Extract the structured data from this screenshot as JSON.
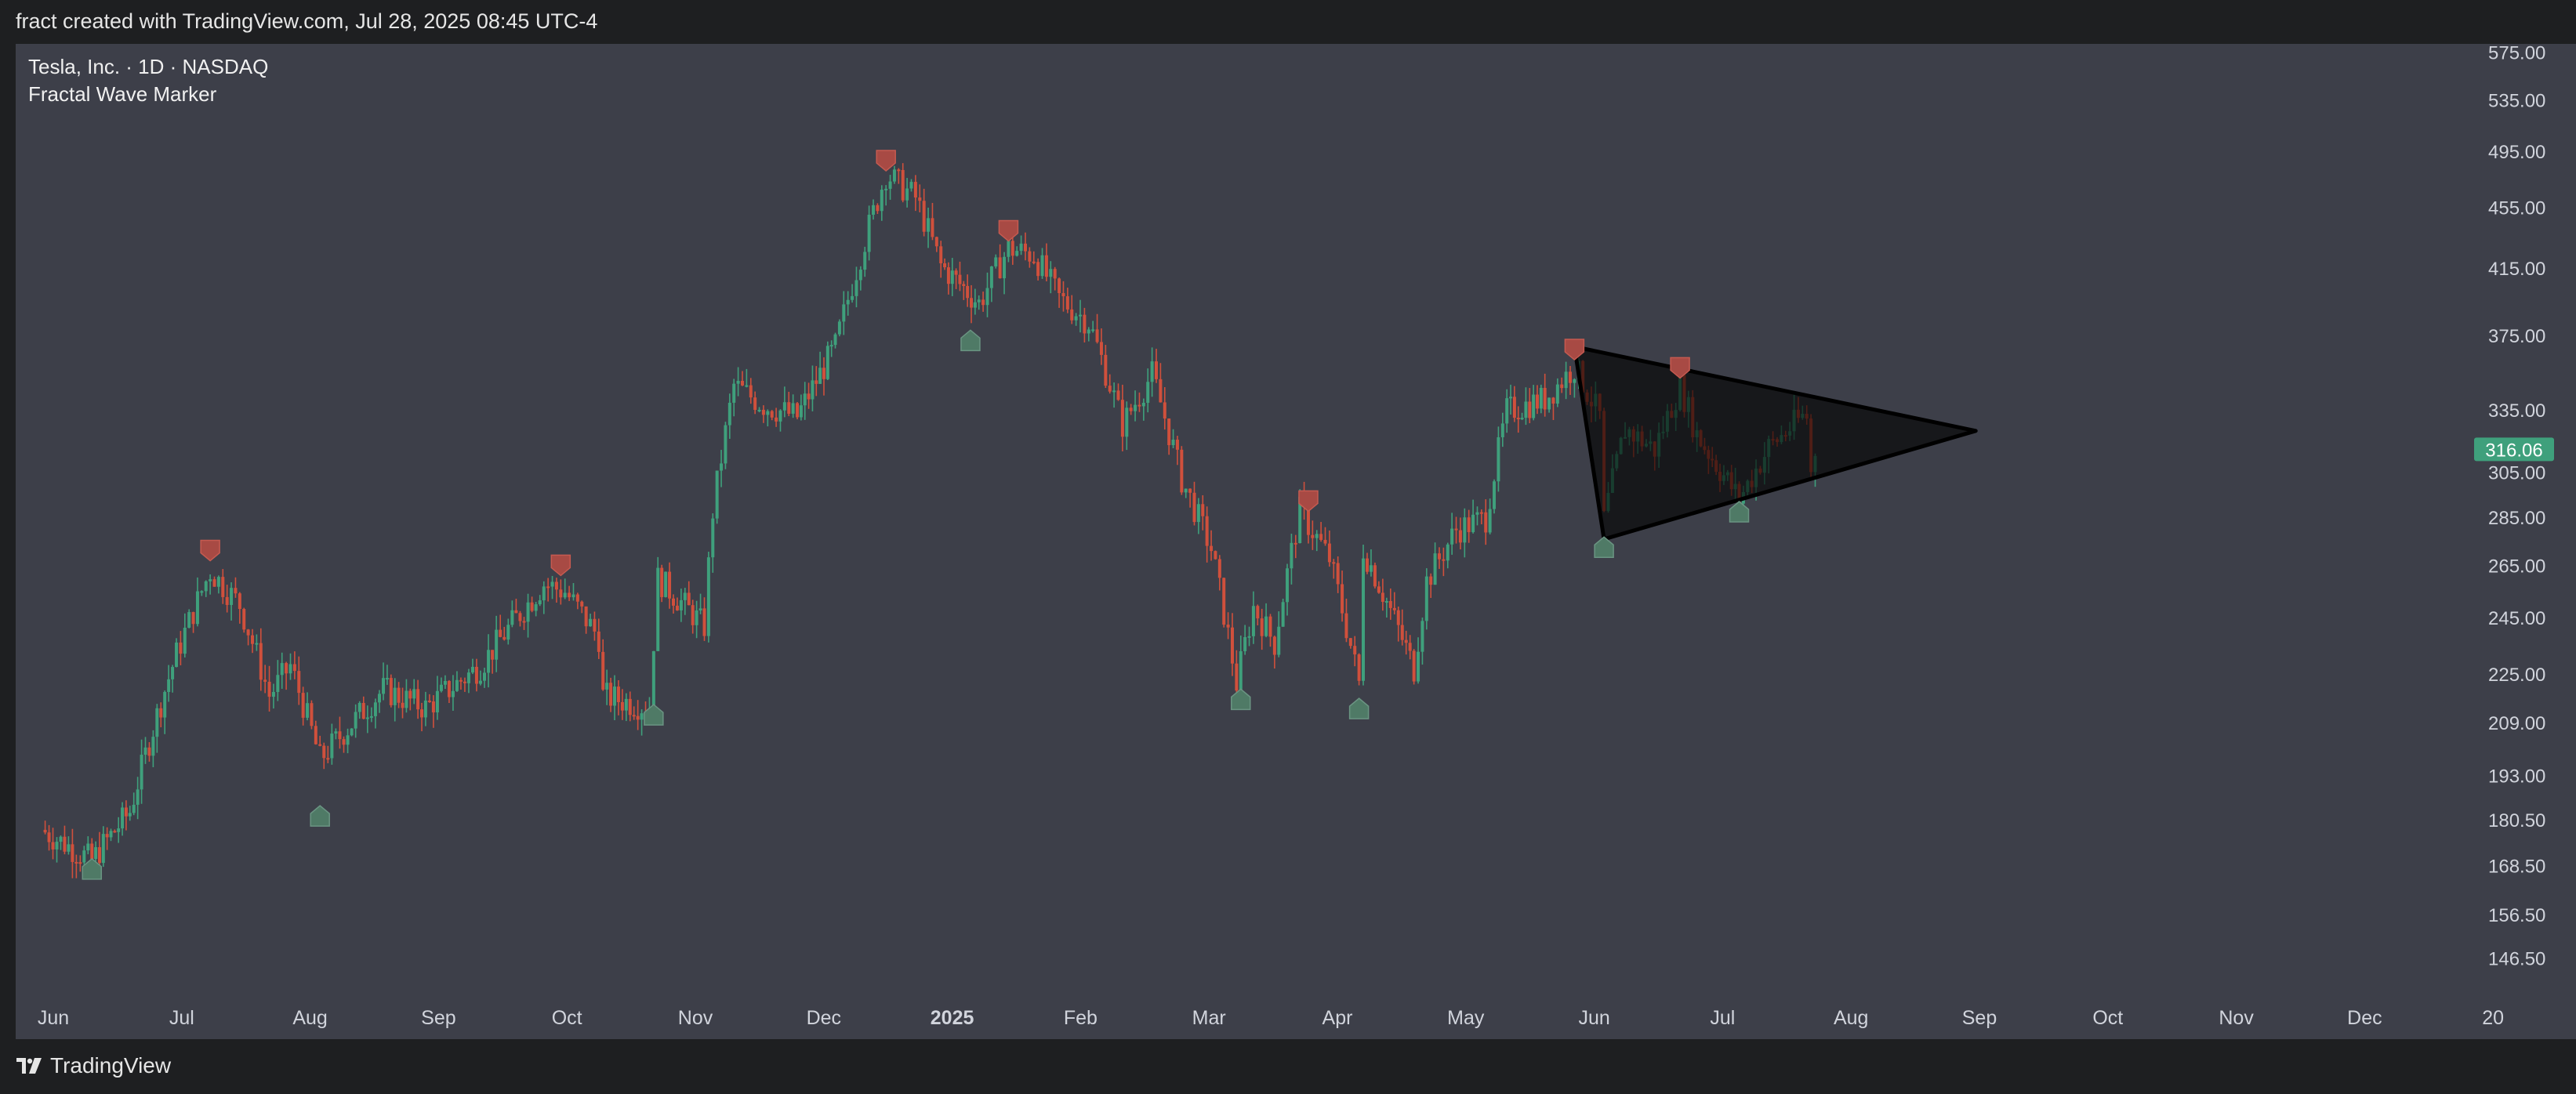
{
  "header": {
    "caption": "fract created with TradingView.com, Jul 28, 2025 08:45 UTC-4"
  },
  "legend": {
    "symbol_line": "Tesla, Inc. · 1D · NASDAQ",
    "indicator": "Fractal Wave Marker"
  },
  "footer": {
    "brand": "TradingView",
    "logo_icon": "tradingview-logo-icon"
  },
  "colors": {
    "up": "#3fa07c",
    "down": "#d0503c",
    "marker_top": "#a84a44",
    "marker_bottom": "#4f7a66",
    "triangle": "#000000",
    "last_price_bg": "#3fa07c"
  },
  "chart_data": {
    "type": "candlestick",
    "symbol": "Tesla, Inc.",
    "interval": "1D",
    "exchange": "NASDAQ",
    "indicator": "Fractal Wave Marker",
    "price_ticks": [
      575.0,
      535.0,
      495.0,
      455.0,
      415.0,
      375.0,
      335.0,
      305.0,
      285.0,
      265.0,
      245.0,
      225.0,
      209.0,
      193.0,
      180.5,
      168.5,
      156.5,
      146.5
    ],
    "last_price": "316.06",
    "ylim": [
      140,
      580
    ],
    "scale": "log",
    "time_ticks": [
      {
        "label": "Jun",
        "bold": false
      },
      {
        "label": "Jul",
        "bold": false
      },
      {
        "label": "Aug",
        "bold": false
      },
      {
        "label": "Sep",
        "bold": false
      },
      {
        "label": "Oct",
        "bold": false
      },
      {
        "label": "Nov",
        "bold": false
      },
      {
        "label": "Dec",
        "bold": false
      },
      {
        "label": "2025",
        "bold": true
      },
      {
        "label": "Feb",
        "bold": false
      },
      {
        "label": "Mar",
        "bold": false
      },
      {
        "label": "Apr",
        "bold": false
      },
      {
        "label": "May",
        "bold": false
      },
      {
        "label": "Jun",
        "bold": false
      },
      {
        "label": "Jul",
        "bold": false
      },
      {
        "label": "Aug",
        "bold": false
      },
      {
        "label": "Sep",
        "bold": false
      },
      {
        "label": "Oct",
        "bold": false
      },
      {
        "label": "Nov",
        "bold": false
      },
      {
        "label": "Dec",
        "bold": false
      },
      {
        "label": "20",
        "bold": false
      }
    ],
    "swing_points": [
      {
        "date": "2024-05-31",
        "close": 178
      },
      {
        "date": "2024-06-12",
        "close": 170
      },
      {
        "date": "2024-06-21",
        "close": 183
      },
      {
        "date": "2024-07-02",
        "close": 232
      },
      {
        "date": "2024-07-10",
        "close": 263
      },
      {
        "date": "2024-07-17",
        "close": 250
      },
      {
        "date": "2024-07-24",
        "close": 218
      },
      {
        "date": "2024-07-29",
        "close": 228
      },
      {
        "date": "2024-08-05",
        "close": 198
      },
      {
        "date": "2024-08-20",
        "close": 220
      },
      {
        "date": "2024-08-30",
        "close": 214
      },
      {
        "date": "2024-09-12",
        "close": 228
      },
      {
        "date": "2024-09-27",
        "close": 258
      },
      {
        "date": "2024-10-02",
        "close": 255
      },
      {
        "date": "2024-10-10",
        "close": 238
      },
      {
        "date": "2024-10-11",
        "close": 218
      },
      {
        "date": "2024-10-22",
        "close": 214
      },
      {
        "date": "2024-10-24",
        "close": 260
      },
      {
        "date": "2024-11-04",
        "close": 242
      },
      {
        "date": "2024-11-06",
        "close": 288
      },
      {
        "date": "2024-11-11",
        "close": 348
      },
      {
        "date": "2024-11-18",
        "close": 338
      },
      {
        "date": "2024-11-26",
        "close": 332
      },
      {
        "date": "2024-12-05",
        "close": 369
      },
      {
        "date": "2024-12-11",
        "close": 424
      },
      {
        "date": "2024-12-17",
        "close": 479
      },
      {
        "date": "2024-12-24",
        "close": 462
      },
      {
        "date": "2024-12-30",
        "close": 417
      },
      {
        "date": "2025-01-08",
        "close": 394
      },
      {
        "date": "2025-01-15",
        "close": 428
      },
      {
        "date": "2025-01-21",
        "close": 424
      },
      {
        "date": "2025-01-27",
        "close": 397
      },
      {
        "date": "2025-02-03",
        "close": 383
      },
      {
        "date": "2025-02-11",
        "close": 328
      },
      {
        "date": "2025-02-18",
        "close": 354
      },
      {
        "date": "2025-02-25",
        "close": 302
      },
      {
        "date": "2025-03-04",
        "close": 272
      },
      {
        "date": "2025-03-10",
        "close": 222
      },
      {
        "date": "2025-03-14",
        "close": 249
      },
      {
        "date": "2025-03-19",
        "close": 236
      },
      {
        "date": "2025-03-25",
        "close": 288
      },
      {
        "date": "2025-04-01",
        "close": 268
      },
      {
        "date": "2025-04-08",
        "close": 222
      },
      {
        "date": "2025-04-09",
        "close": 272
      },
      {
        "date": "2025-04-21",
        "close": 227
      },
      {
        "date": "2025-04-24",
        "close": 259
      },
      {
        "date": "2025-05-01",
        "close": 280
      },
      {
        "date": "2025-05-08",
        "close": 285
      },
      {
        "date": "2025-05-13",
        "close": 335
      },
      {
        "date": "2025-05-22",
        "close": 341
      },
      {
        "date": "2025-05-29",
        "close": 358
      },
      {
        "date": "2025-06-04",
        "close": 332
      },
      {
        "date": "2025-06-05",
        "close": 284
      },
      {
        "date": "2025-06-10",
        "close": 326
      },
      {
        "date": "2025-06-17",
        "close": 316
      },
      {
        "date": "2025-06-23",
        "close": 348
      },
      {
        "date": "2025-06-27",
        "close": 323
      },
      {
        "date": "2025-07-07",
        "close": 293
      },
      {
        "date": "2025-07-14",
        "close": 317
      },
      {
        "date": "2025-07-22",
        "close": 332
      },
      {
        "date": "2025-07-23",
        "close": 332
      },
      {
        "date": "2025-07-24",
        "close": 305
      },
      {
        "date": "2025-07-25",
        "close": 316
      }
    ],
    "fractal_markers": [
      {
        "date": "2024-06-12",
        "price": 168,
        "kind": "bottom"
      },
      {
        "date": "2024-07-10",
        "price": 271,
        "kind": "top"
      },
      {
        "date": "2024-08-05",
        "price": 182,
        "kind": "bottom"
      },
      {
        "date": "2024-10-01",
        "price": 265,
        "kind": "top"
      },
      {
        "date": "2024-10-23",
        "price": 212,
        "kind": "bottom"
      },
      {
        "date": "2024-12-17",
        "price": 488,
        "kind": "top"
      },
      {
        "date": "2025-01-06",
        "price": 373,
        "kind": "bottom"
      },
      {
        "date": "2025-01-15",
        "price": 439,
        "kind": "top"
      },
      {
        "date": "2025-03-11",
        "price": 217,
        "kind": "bottom"
      },
      {
        "date": "2025-03-27",
        "price": 292,
        "kind": "top"
      },
      {
        "date": "2025-04-08",
        "price": 214,
        "kind": "bottom"
      },
      {
        "date": "2025-05-29",
        "price": 367,
        "kind": "top"
      },
      {
        "date": "2025-06-05",
        "price": 273,
        "kind": "bottom"
      },
      {
        "date": "2025-06-23",
        "price": 357,
        "kind": "top"
      },
      {
        "date": "2025-07-07",
        "price": 288,
        "kind": "bottom"
      }
    ],
    "triangle_pattern": [
      {
        "date": "2025-05-29",
        "price": 369
      },
      {
        "date": "2025-09-01",
        "price": 325
      },
      {
        "date": "2025-06-05",
        "price": 276
      }
    ],
    "grid": false,
    "legend_position": "top-left"
  }
}
